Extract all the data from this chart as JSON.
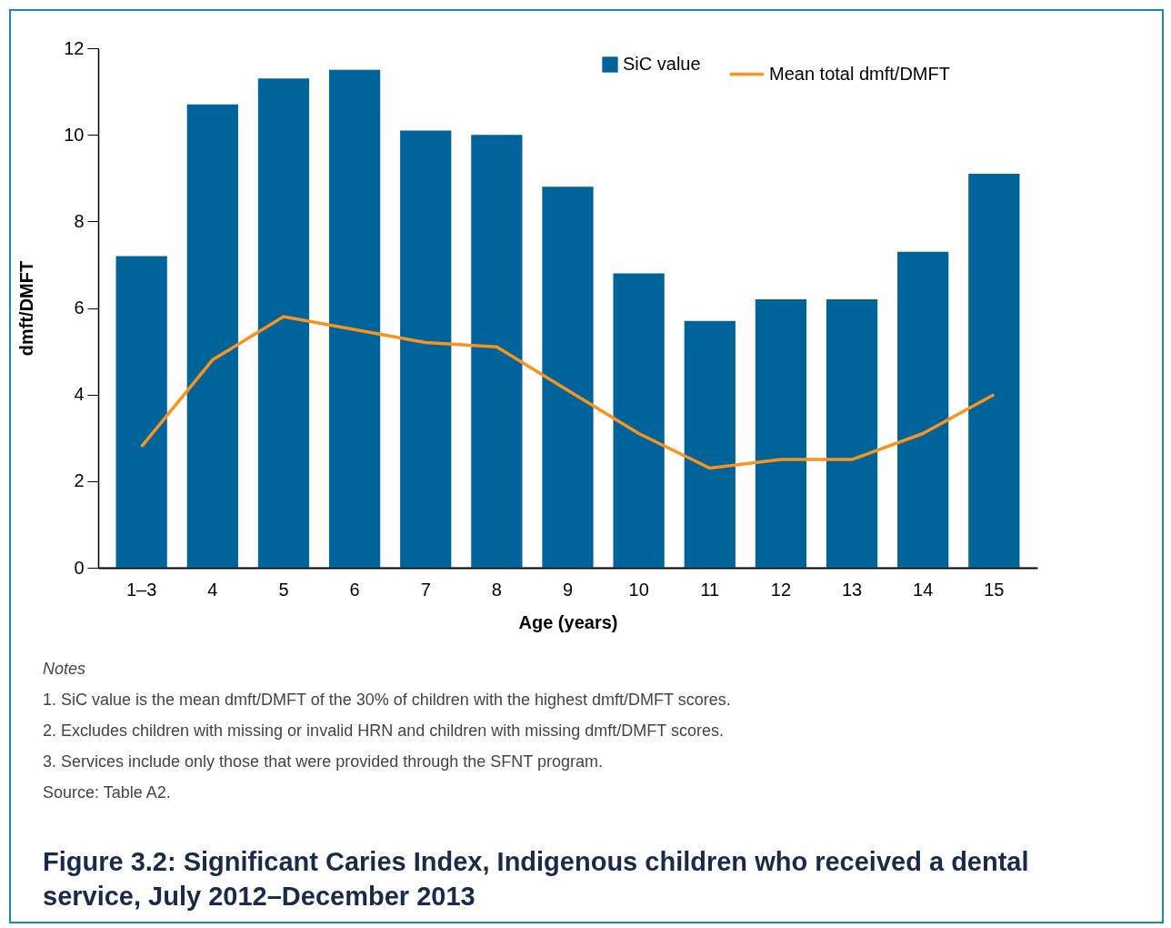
{
  "chart_data": {
    "type": "bar",
    "title": "Figure 3.2: Significant Caries Index, Indigenous children who received a dental service, July 2012–December 2013",
    "xlabel": "Age (years)",
    "ylabel": "dmft/DMFT",
    "categories": [
      "1–3",
      "4",
      "5",
      "6",
      "7",
      "8",
      "9",
      "10",
      "11",
      "12",
      "13",
      "14",
      "15"
    ],
    "series": [
      {
        "name": "SiC value",
        "color": "#00639a",
        "values": [
          7.2,
          10.7,
          11.3,
          11.5,
          10.1,
          10.0,
          8.8,
          6.8,
          5.7,
          6.2,
          6.2,
          7.3,
          9.1
        ]
      },
      {
        "name": "Mean total dmft/DMFT",
        "type": "line",
        "color": "#f7931e",
        "values": [
          2.8,
          4.8,
          5.8,
          5.5,
          5.2,
          5.1,
          4.1,
          3.1,
          2.3,
          2.5,
          2.5,
          3.1,
          4.0
        ]
      }
    ],
    "ylim": [
      0,
      12
    ],
    "yticks": [
      0,
      2,
      4,
      6,
      8,
      10,
      12
    ],
    "grid": false,
    "legend": "top right",
    "annotations": [
      "Notes",
      "1.  SiC value is the mean dmft/DMFT of the 30% of children with the highest dmft/DMFT scores.",
      "2.  Excludes children with missing or invalid HRN and children with missing dmft/DMFT scores.",
      "3.  Services include only those that were provided through the SFNT program.",
      "Source: Table A2."
    ]
  }
}
